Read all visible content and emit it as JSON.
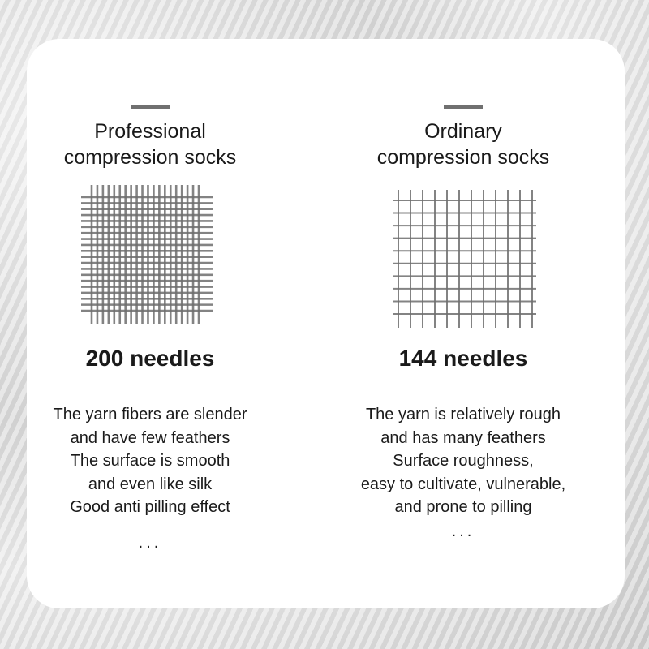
{
  "left": {
    "title_line1": "Professional",
    "title_line2": "compression socks",
    "needles": "200 needles",
    "desc": [
      "The yarn fibers are slender",
      "and have few feathers",
      "The surface is smooth",
      "and even like silk",
      "Good anti pilling effect"
    ],
    "ellipsis": "..."
  },
  "right": {
    "title_line1": "Ordinary",
    "title_line2": "compression socks",
    "needles": "144 needles",
    "desc": [
      "The yarn is relatively rough",
      "and has many feathers",
      "Surface roughness,",
      "easy to cultivate, vulnerable,",
      "and prone to pilling"
    ],
    "ellipsis": "..."
  },
  "colors": {
    "grid_line": "#6e6e6e",
    "accent_bar": "#707070"
  }
}
